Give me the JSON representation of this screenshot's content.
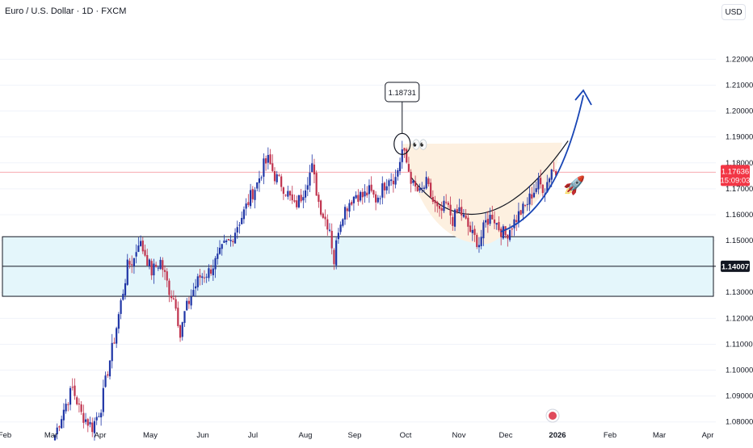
{
  "header": {
    "title": "Euro / U.S. Dollar · 1D · FXCM",
    "currency": "USD"
  },
  "colors": {
    "up": "#1f35a6",
    "down": "#c0334e",
    "zone_fill": "#e4f6fb",
    "cup_fill": "#fdf0e0",
    "current_price_bg": "#f23645",
    "arrow": "#1845b5",
    "grid_line": "#f0f3fa",
    "current_line": "#f7a9b0"
  },
  "chart_data": {
    "type": "candlestick",
    "title": "Euro / U.S. Dollar · 1D · FXCM",
    "ylim": [
      1.074,
      1.236
    ],
    "y_ticks": [
      "1.22000",
      "1.21000",
      "1.20000",
      "1.19000",
      "1.18000",
      "1.17000",
      "1.16000",
      "1.15000",
      "1.13000",
      "1.12000",
      "1.11000",
      "1.10000",
      "1.09000",
      "1.08000"
    ],
    "x_ticks": [
      "Feb",
      "Mar",
      "Apr",
      "May",
      "Jun",
      "Jul",
      "Aug",
      "Sep",
      "Oct",
      "Nov",
      "Dec",
      "2026",
      "Feb",
      "Mar",
      "Apr"
    ],
    "current_price": {
      "value": 1.17636,
      "label": "1.17636",
      "countdown": "15:09:03"
    },
    "level_price": {
      "value": 1.14007,
      "label": "1.14007"
    },
    "peak_callout": {
      "value": 1.18731,
      "label": "1.18731"
    },
    "support_zone": {
      "top": 1.1515,
      "bottom": 1.1285
    },
    "annotations": [
      "👀",
      "🚀"
    ],
    "pattern": "cup",
    "projection": "upward arrow",
    "anchors": [
      [
        0,
        1.075
      ],
      [
        4,
        1.085
      ],
      [
        8,
        1.093
      ],
      [
        12,
        1.083
      ],
      [
        17,
        1.078
      ],
      [
        21,
        1.086
      ],
      [
        24,
        1.1
      ],
      [
        27,
        1.112
      ],
      [
        30,
        1.126
      ],
      [
        33,
        1.14
      ],
      [
        36,
        1.143
      ],
      [
        38,
        1.15
      ],
      [
        41,
        1.145
      ],
      [
        44,
        1.138
      ],
      [
        48,
        1.142
      ],
      [
        52,
        1.131
      ],
      [
        55,
        1.126
      ],
      [
        57,
        1.113
      ],
      [
        59,
        1.122
      ],
      [
        63,
        1.131
      ],
      [
        66,
        1.136
      ],
      [
        70,
        1.138
      ],
      [
        74,
        1.143
      ],
      [
        77,
        1.148
      ],
      [
        80,
        1.15
      ],
      [
        83,
        1.156
      ],
      [
        86,
        1.161
      ],
      [
        89,
        1.167
      ],
      [
        92,
        1.172
      ],
      [
        95,
        1.179
      ],
      [
        97,
        1.181
      ],
      [
        100,
        1.175
      ],
      [
        103,
        1.172
      ],
      [
        106,
        1.168
      ],
      [
        109,
        1.163
      ],
      [
        112,
        1.167
      ],
      [
        115,
        1.174
      ],
      [
        117,
        1.178
      ],
      [
        120,
        1.165
      ],
      [
        122,
        1.16
      ],
      [
        125,
        1.155
      ],
      [
        127,
        1.142
      ],
      [
        129,
        1.155
      ],
      [
        131,
        1.161
      ],
      [
        134,
        1.165
      ],
      [
        137,
        1.168
      ],
      [
        140,
        1.167
      ],
      [
        143,
        1.169
      ],
      [
        146,
        1.166
      ],
      [
        149,
        1.17
      ],
      [
        152,
        1.175
      ],
      [
        155,
        1.174
      ],
      [
        157,
        1.181
      ],
      [
        158,
        1.185
      ],
      [
        160,
        1.18
      ],
      [
        163,
        1.171
      ],
      [
        166,
        1.168
      ],
      [
        169,
        1.172
      ],
      [
        172,
        1.165
      ],
      [
        175,
        1.16
      ],
      [
        178,
        1.164
      ],
      [
        181,
        1.158
      ],
      [
        184,
        1.162
      ],
      [
        187,
        1.157
      ],
      [
        190,
        1.152
      ],
      [
        193,
        1.149
      ],
      [
        196,
        1.157
      ],
      [
        199,
        1.16
      ],
      [
        202,
        1.155
      ],
      [
        205,
        1.152
      ],
      [
        208,
        1.156
      ],
      [
        211,
        1.16
      ],
      [
        214,
        1.163
      ],
      [
        217,
        1.168
      ],
      [
        220,
        1.172
      ],
      [
        223,
        1.17
      ],
      [
        226,
        1.178
      ],
      [
        228,
        1.176
      ]
    ]
  }
}
